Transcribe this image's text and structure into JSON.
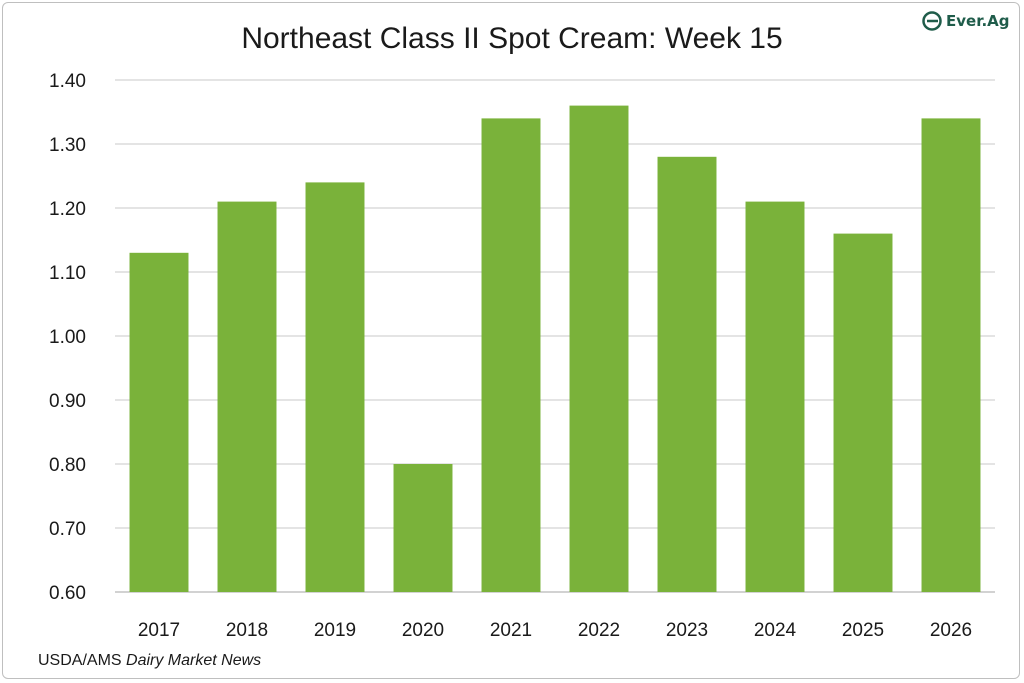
{
  "chart_data": {
    "type": "bar",
    "title": "Northeast Class II Spot Cream: Week 15",
    "categories": [
      "2017",
      "2018",
      "2019",
      "2020",
      "2021",
      "2022",
      "2023",
      "2024",
      "2025",
      "2026"
    ],
    "values": [
      1.13,
      1.21,
      1.24,
      0.8,
      1.34,
      1.36,
      1.28,
      1.21,
      1.16,
      1.34
    ],
    "ylim": [
      0.6,
      1.4
    ],
    "yticks": [
      "0.60",
      "0.70",
      "0.80",
      "0.90",
      "1.00",
      "1.10",
      "1.20",
      "1.30",
      "1.40"
    ],
    "xlabel": "",
    "ylabel": "",
    "grid": true,
    "bar_color": "#7ab23a",
    "grid_color": "#c8c8c8"
  },
  "logo": {
    "text": "Ever.Ag",
    "icon": "ever-ag-logo-icon",
    "color": "#1f5c4a"
  },
  "source": {
    "prefix": "USDA/AMS ",
    "publication": "Dairy Market News"
  }
}
